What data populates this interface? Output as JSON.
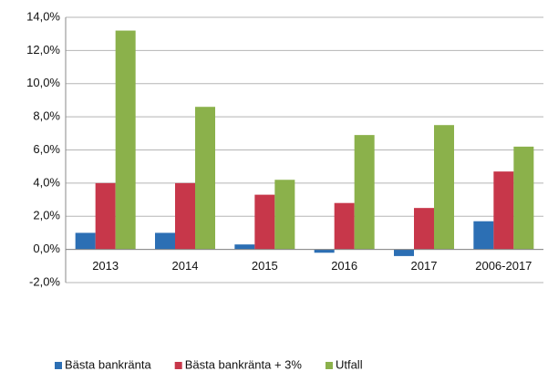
{
  "chart_data": {
    "type": "bar",
    "categories": [
      "2013",
      "2014",
      "2015",
      "2016",
      "2017",
      "2006-2017"
    ],
    "series": [
      {
        "name": "Bästa bankränta",
        "color": "#2c6fb4",
        "values": [
          1.0,
          1.0,
          0.3,
          -0.2,
          -0.4,
          1.7
        ]
      },
      {
        "name": "Bästa bankränta + 3%",
        "color": "#c7374a",
        "values": [
          4.0,
          4.0,
          3.3,
          2.8,
          2.5,
          4.7
        ]
      },
      {
        "name": "Utfall",
        "color": "#8bb14b",
        "values": [
          13.2,
          8.6,
          4.2,
          6.9,
          7.5,
          6.2
        ]
      }
    ],
    "ylim": [
      -2,
      14
    ],
    "yticks": [
      {
        "value": -2,
        "label": "-2,0%"
      },
      {
        "value": 0,
        "label": "0,0%"
      },
      {
        "value": 2,
        "label": "2,0%"
      },
      {
        "value": 4,
        "label": "4,0%"
      },
      {
        "value": 6,
        "label": "6,0%"
      },
      {
        "value": 8,
        "label": "8,0%"
      },
      {
        "value": 10,
        "label": "10,0%"
      },
      {
        "value": 12,
        "label": "12,0%"
      },
      {
        "value": 14,
        "label": "14,0%"
      }
    ],
    "grid": true,
    "legend": "bottom"
  }
}
